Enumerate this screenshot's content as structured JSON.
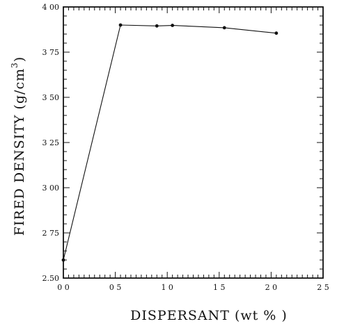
{
  "chart_data": {
    "type": "line",
    "title": "",
    "xlabel": "DISPERSANT  (wt % )",
    "ylabel_main": "FIRED  DENSITY  (g/cm",
    "ylabel_sup": "3",
    "ylabel_end": ")",
    "xlim": [
      0.0,
      2.5
    ],
    "ylim": [
      2.5,
      4.0
    ],
    "x_ticks": [
      0.0,
      0.5,
      1.0,
      1.5,
      2.0,
      2.5
    ],
    "x_tick_labels": [
      "0 0",
      "0 5",
      "1 0",
      "1 5",
      "2 0",
      "2 5"
    ],
    "y_ticks": [
      2.5,
      2.75,
      3.0,
      3.25,
      3.5,
      3.75,
      4.0
    ],
    "y_tick_labels": [
      "2.50",
      "2 75",
      "3 00",
      "3 25",
      "3 50",
      "3 75",
      "4 00"
    ],
    "x_minor_step": 0.05,
    "y_minor_step": 0.05,
    "grid": false,
    "series": [
      {
        "x": [
          0.0,
          0.55,
          0.9,
          1.05,
          1.55,
          2.05
        ],
        "y": [
          2.6,
          3.9,
          3.895,
          3.898,
          3.885,
          3.855
        ]
      }
    ]
  }
}
